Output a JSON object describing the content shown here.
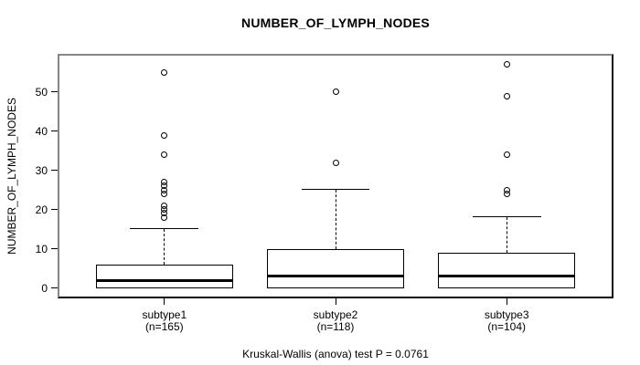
{
  "title": "NUMBER_OF_LYMPH_NODES",
  "chart_data": {
    "type": "boxplot",
    "title": "NUMBER_OF_LYMPH_NODES",
    "ylabel": "NUMBER_OF_LYMPH_NODES",
    "xlabel": "",
    "annotation": "Kruskal-Wallis (anova) test P = 0.0761",
    "y_ticks": [
      0,
      10,
      20,
      30,
      40,
      50
    ],
    "ylim": [
      -2.4,
      59.7
    ],
    "grid": false,
    "legend": null,
    "groups": [
      {
        "label": "subtype1",
        "sublabel": "(n=165)",
        "n": 165,
        "q1": 0,
        "median": 2,
        "q3": 6,
        "whisker_low": 0,
        "whisker_high": 15,
        "outliers": [
          18,
          19,
          20,
          21,
          24,
          25,
          26,
          27,
          34,
          39,
          55
        ]
      },
      {
        "label": "subtype2",
        "sublabel": "(n=118)",
        "n": 118,
        "q1": 0,
        "median": 3,
        "q3": 10,
        "whisker_low": 0,
        "whisker_high": 25,
        "outliers": [
          32,
          50
        ]
      },
      {
        "label": "subtype3",
        "sublabel": "(n=104)",
        "n": 104,
        "q1": 0,
        "median": 3,
        "q3": 9,
        "whisker_low": 0,
        "whisker_high": 18,
        "outliers": [
          24,
          25,
          34,
          49,
          57
        ]
      }
    ],
    "colors": {
      "stroke": "#000000",
      "box_fill": "#ffffff",
      "background": "#ffffff",
      "frame_top_left": "#868686",
      "frame_bottom_right": "#0d0d0d"
    }
  }
}
